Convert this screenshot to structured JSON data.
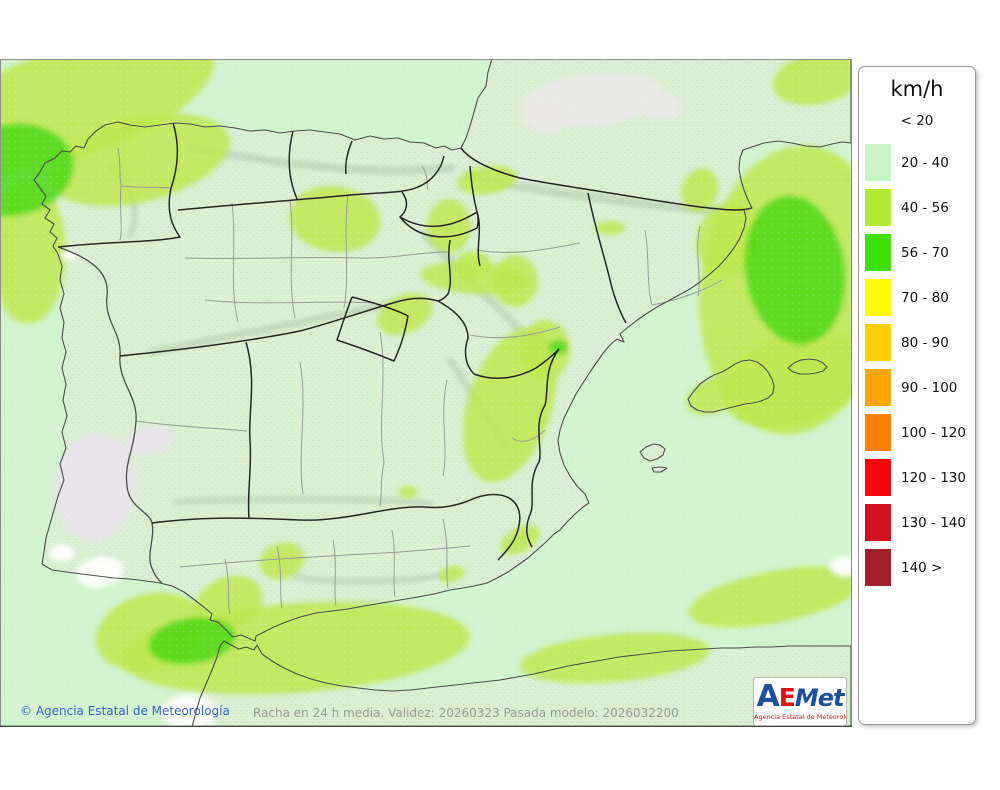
{
  "legend": {
    "title": "km/h",
    "entries": [
      {
        "label": "< 20",
        "color": null
      },
      {
        "label": "20 - 40",
        "color": "#c8f4c6"
      },
      {
        "label": "40 - 56",
        "color": "#b0ea33"
      },
      {
        "label": "56 - 70",
        "color": "#3fe00a"
      },
      {
        "label": "70 - 80",
        "color": "#ffff00"
      },
      {
        "label": "80 - 90",
        "color": "#ffd000"
      },
      {
        "label": "90 - 100",
        "color": "#ffa600"
      },
      {
        "label": "100 - 120",
        "color": "#ff8000"
      },
      {
        "label": "120 - 130",
        "color": "#ff000d"
      },
      {
        "label": "130 - 140",
        "color": "#cf1420"
      },
      {
        "label": "140 >",
        "color": "#a0212b"
      }
    ]
  },
  "map": {
    "bands_visible_on_map": [
      "< 20",
      "20 - 40",
      "40 - 56",
      "56 - 70"
    ],
    "dominant_band": "20 - 40",
    "colors": {
      "sea": "#d3f2cf",
      "land": "#dbeed4",
      "terrain": "#b2c6ad",
      "band_40_56": "#c0e64d",
      "band_56_70": "#4ed814",
      "gray_lt20": "#e9e8e7",
      "lavender_lt20": "#e9e2ec",
      "white_lt20": "#ffffff",
      "coast": "#4d4d4d",
      "region": "#262626",
      "province": "#9b9b9b",
      "frame": "#8c8c8c",
      "copyright": "#3366cc",
      "info": "#9a9a9a",
      "logo_blue": "#1c4fa0",
      "logo_red": "#e01010"
    }
  },
  "footer": {
    "copyright": "© Agencia Estatal de Meteorología",
    "info": "Racha en 24 h media. Validez: 20260323 Pasada modelo: 2026032200"
  },
  "logo": {
    "text_a": "A",
    "text_e": "E",
    "text_met": "Met",
    "subtitle": "Agencia Estatal de Meteorología"
  }
}
